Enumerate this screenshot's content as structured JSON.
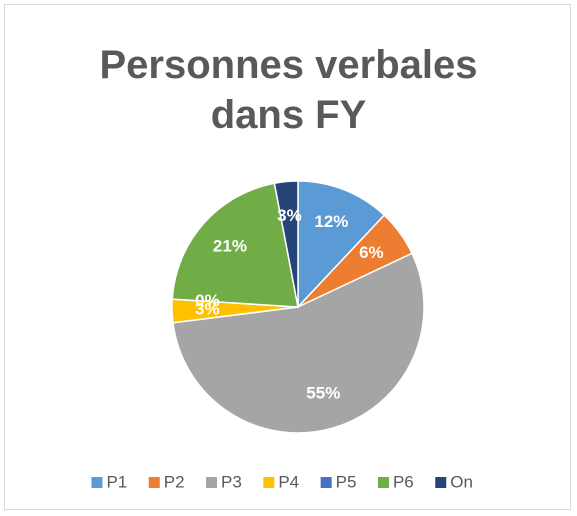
{
  "chart_data": {
    "type": "pie",
    "title": "Personnes verbales dans FY",
    "categories": [
      "P1",
      "P2",
      "P3",
      "P4",
      "P5",
      "P6",
      "On"
    ],
    "values": [
      12,
      6,
      55,
      3,
      0,
      21,
      3
    ],
    "value_labels": [
      "12%",
      "6%",
      "55%",
      "3%",
      "0%",
      "21%",
      "3%"
    ],
    "colors": [
      "#5b9bd5",
      "#ed7d31",
      "#a5a5a5",
      "#ffc000",
      "#4472c4",
      "#70ad47",
      "#264478"
    ],
    "legend": "bottom"
  }
}
